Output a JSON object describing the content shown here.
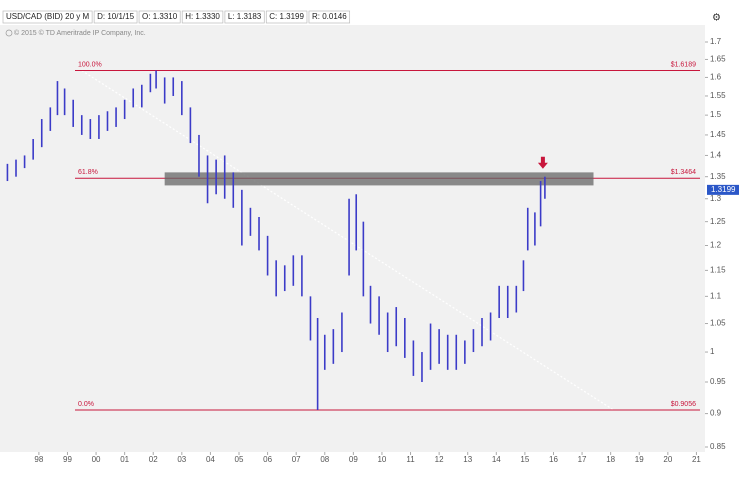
{
  "chart_data": {
    "type": "range_bar",
    "header": [
      "USD/CAD (BID) 20 y M",
      "D: 10/1/15",
      "O: 1.3310",
      "H: 1.3330",
      "L: 1.3183",
      "C: 1.3199",
      "R: 0.0146"
    ],
    "subtitle": "© 2015 © TD Ameritrade IP Company, Inc.",
    "color": "#3b3bc8",
    "x": [
      1996.9,
      1997.2,
      1997.5,
      1997.8,
      1998.1,
      1998.4,
      1998.65,
      1998.9,
      1999.2,
      1999.5,
      1999.8,
      2000.1,
      2000.4,
      2000.7,
      2001.0,
      2001.3,
      2001.6,
      2001.9,
      2002.1,
      2002.4,
      2002.7,
      2003.0,
      2003.3,
      2003.6,
      2003.9,
      2004.2,
      2004.5,
      2004.8,
      2005.1,
      2005.4,
      2005.7,
      2006.0,
      2006.3,
      2006.6,
      2006.9,
      2007.2,
      2007.5,
      2007.75,
      2008.0,
      2008.3,
      2008.6,
      2008.85,
      2009.1,
      2009.35,
      2009.6,
      2009.9,
      2010.2,
      2010.5,
      2010.8,
      2011.1,
      2011.4,
      2011.7,
      2012.0,
      2012.3,
      2012.6,
      2012.9,
      2013.2,
      2013.5,
      2013.8,
      2014.1,
      2014.4,
      2014.7,
      2014.95,
      2015.1,
      2015.35,
      2015.55,
      2015.7
    ],
    "high": [
      1.38,
      1.39,
      1.4,
      1.44,
      1.49,
      1.52,
      1.59,
      1.57,
      1.54,
      1.5,
      1.49,
      1.5,
      1.51,
      1.52,
      1.54,
      1.57,
      1.58,
      1.61,
      1.6189,
      1.6,
      1.6,
      1.59,
      1.52,
      1.45,
      1.4,
      1.39,
      1.4,
      1.36,
      1.32,
      1.28,
      1.26,
      1.22,
      1.17,
      1.16,
      1.18,
      1.18,
      1.1,
      1.06,
      1.03,
      1.04,
      1.07,
      1.3,
      1.31,
      1.25,
      1.12,
      1.1,
      1.07,
      1.08,
      1.06,
      1.02,
      1.0,
      1.05,
      1.04,
      1.03,
      1.03,
      1.02,
      1.04,
      1.06,
      1.07,
      1.12,
      1.12,
      1.12,
      1.17,
      1.28,
      1.27,
      1.34,
      1.35
    ],
    "low": [
      1.34,
      1.35,
      1.37,
      1.39,
      1.42,
      1.46,
      1.5,
      1.5,
      1.47,
      1.45,
      1.44,
      1.44,
      1.46,
      1.47,
      1.49,
      1.52,
      1.52,
      1.56,
      1.57,
      1.53,
      1.55,
      1.5,
      1.43,
      1.35,
      1.29,
      1.31,
      1.3,
      1.28,
      1.2,
      1.22,
      1.19,
      1.14,
      1.1,
      1.11,
      1.12,
      1.1,
      1.02,
      0.9056,
      0.97,
      0.98,
      1.0,
      1.14,
      1.19,
      1.1,
      1.05,
      1.03,
      1.0,
      1.01,
      0.99,
      0.96,
      0.95,
      0.97,
      0.98,
      0.97,
      0.97,
      0.98,
      1.0,
      1.01,
      1.02,
      1.06,
      1.06,
      1.07,
      1.11,
      1.19,
      1.2,
      1.24,
      1.3
    ],
    "last": 1.3199,
    "levels": [
      {
        "label": "100.0%",
        "value": 1.6189,
        "value_label": "$1.6189"
      },
      {
        "label": "61.8%",
        "value": 1.3464,
        "value_label": "$1.3464"
      },
      {
        "label": "0.0%",
        "value": 0.9056,
        "value_label": "$0.9056"
      }
    ],
    "zone": {
      "x": [
        2002.4,
        2017.4
      ],
      "y": [
        1.33,
        1.36
      ]
    },
    "trendline": {
      "x": [
        1999.5,
        2018.1
      ],
      "y": [
        1.6189,
        0.9056
      ]
    },
    "log_scale": true,
    "xlim": [
      1996.64,
      2021.3
    ],
    "xticks": [
      {
        "value": 1998,
        "label": "98"
      },
      {
        "value": 1999,
        "label": "99"
      },
      {
        "value": 2000,
        "label": "00"
      },
      {
        "value": 2001,
        "label": "01"
      },
      {
        "value": 2002,
        "label": "02"
      },
      {
        "value": 2003,
        "label": "03"
      },
      {
        "value": 2004,
        "label": "04"
      },
      {
        "value": 2005,
        "label": "05"
      },
      {
        "value": 2006,
        "label": "06"
      },
      {
        "value": 2007,
        "label": "07"
      },
      {
        "value": 2008,
        "label": "08"
      },
      {
        "value": 2009,
        "label": "09"
      },
      {
        "value": 2010,
        "label": "10"
      },
      {
        "value": 2011,
        "label": "11"
      },
      {
        "value": 2012,
        "label": "12"
      },
      {
        "value": 2013,
        "label": "13"
      },
      {
        "value": 2014,
        "label": "14"
      },
      {
        "value": 2015,
        "label": "15"
      },
      {
        "value": 2016,
        "label": "16"
      },
      {
        "value": 2017,
        "label": "17"
      },
      {
        "value": 2018,
        "label": "18"
      },
      {
        "value": 2019,
        "label": "19"
      },
      {
        "value": 2020,
        "label": "20"
      },
      {
        "value": 2021,
        "label": "21"
      }
    ],
    "ylim": [
      0.85,
      1.7
    ],
    "yticks": [
      0.85,
      0.9,
      0.95,
      1,
      1.05,
      1.1,
      1.15,
      1.2,
      1.25,
      1.3,
      1.35,
      1.4,
      1.45,
      1.5,
      1.55,
      1.6,
      1.65,
      1.7
    ]
  }
}
